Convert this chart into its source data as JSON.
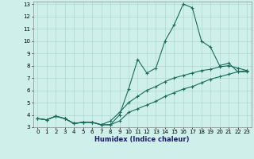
{
  "xlabel": "Humidex (Indice chaleur)",
  "bg_color": "#cff0ea",
  "grid_color": "#aad8d0",
  "line_color": "#1a6b5a",
  "xlim": [
    -0.5,
    23.5
  ],
  "ylim": [
    3,
    13.2
  ],
  "xticks": [
    0,
    1,
    2,
    3,
    4,
    5,
    6,
    7,
    8,
    9,
    10,
    11,
    12,
    13,
    14,
    15,
    16,
    17,
    18,
    19,
    20,
    21,
    22,
    23
  ],
  "yticks": [
    3,
    4,
    5,
    6,
    7,
    8,
    9,
    10,
    11,
    12,
    13
  ],
  "series": [
    {
      "x": [
        0,
        1,
        2,
        3,
        4,
        5,
        6,
        7,
        8,
        9,
        10,
        11,
        12,
        13,
        14,
        15,
        16,
        17,
        18,
        19,
        20,
        21,
        22,
        23
      ],
      "y": [
        3.7,
        3.6,
        3.9,
        3.7,
        3.3,
        3.4,
        3.4,
        3.2,
        3.2,
        4.0,
        6.1,
        8.5,
        7.4,
        7.8,
        10.0,
        11.3,
        13.0,
        12.7,
        10.0,
        9.5,
        8.0,
        8.2,
        7.5,
        7.5
      ]
    },
    {
      "x": [
        0,
        1,
        2,
        3,
        4,
        5,
        6,
        7,
        8,
        9,
        10,
        11,
        12,
        13,
        14,
        15,
        16,
        17,
        18,
        19,
        20,
        21,
        22,
        23
      ],
      "y": [
        3.7,
        3.6,
        3.9,
        3.7,
        3.3,
        3.4,
        3.4,
        3.2,
        3.5,
        4.2,
        5.0,
        5.5,
        6.0,
        6.3,
        6.7,
        7.0,
        7.2,
        7.4,
        7.6,
        7.7,
        7.9,
        8.0,
        7.8,
        7.6
      ]
    },
    {
      "x": [
        0,
        1,
        2,
        3,
        4,
        5,
        6,
        7,
        8,
        9,
        10,
        11,
        12,
        13,
        14,
        15,
        16,
        17,
        18,
        19,
        20,
        21,
        22,
        23
      ],
      "y": [
        3.7,
        3.6,
        3.9,
        3.7,
        3.3,
        3.4,
        3.4,
        3.2,
        3.2,
        3.5,
        4.2,
        4.5,
        4.8,
        5.1,
        5.5,
        5.8,
        6.1,
        6.3,
        6.6,
        6.9,
        7.1,
        7.3,
        7.5,
        7.6
      ]
    }
  ]
}
